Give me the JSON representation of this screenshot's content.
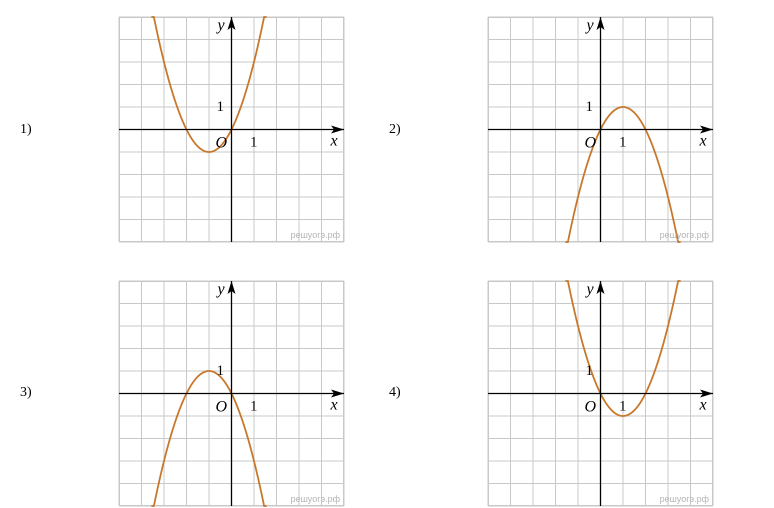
{
  "style": {
    "curve_color": "#c8782c",
    "grid_color": "#c8c8c8",
    "watermark_color": "#b4b4b4"
  },
  "chart_data": [
    {
      "type": "line",
      "option_label": "1)",
      "xlim": [
        -5,
        5
      ],
      "ylim": [
        -5,
        5
      ],
      "a": 1,
      "b": 2,
      "c": 0,
      "x_axis_label": "x",
      "y_axis_label": "y",
      "origin_label": "O",
      "x_tick_label": "1",
      "y_tick_label": "1",
      "watermark": "решуогэ.рф"
    },
    {
      "type": "line",
      "option_label": "2)",
      "xlim": [
        -5,
        5
      ],
      "ylim": [
        -5,
        5
      ],
      "a": -1,
      "b": 2,
      "c": 0,
      "x_axis_label": "x",
      "y_axis_label": "y",
      "origin_label": "O",
      "x_tick_label": "1",
      "y_tick_label": "1",
      "watermark": "решуогэ.рф"
    },
    {
      "type": "line",
      "option_label": "3)",
      "xlim": [
        -5,
        5
      ],
      "ylim": [
        -5,
        5
      ],
      "a": -1,
      "b": -2,
      "c": 0,
      "x_axis_label": "x",
      "y_axis_label": "y",
      "origin_label": "O",
      "x_tick_label": "1",
      "y_tick_label": "1",
      "watermark": "решуогэ.рф"
    },
    {
      "type": "line",
      "option_label": "4)",
      "xlim": [
        -5,
        5
      ],
      "ylim": [
        -5,
        5
      ],
      "a": 1,
      "b": -2,
      "c": 0,
      "x_axis_label": "x",
      "y_axis_label": "y",
      "origin_label": "O",
      "x_tick_label": "1",
      "y_tick_label": "1",
      "watermark": "решуогэ.рф"
    }
  ]
}
